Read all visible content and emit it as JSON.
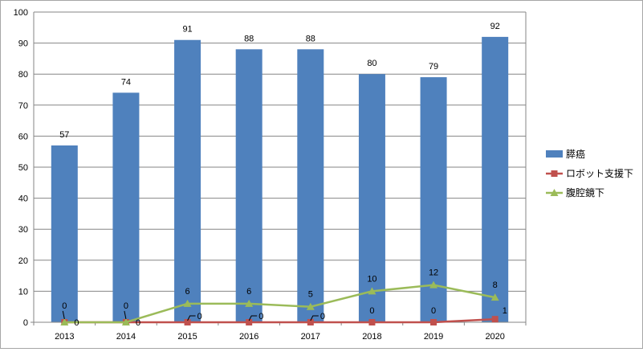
{
  "chart_data": {
    "type": "bar",
    "categories": [
      "2013",
      "2014",
      "2015",
      "2016",
      "2017",
      "2018",
      "2019",
      "2020"
    ],
    "ylim": [
      0,
      100
    ],
    "yticks": [
      0,
      10,
      20,
      30,
      40,
      50,
      60,
      70,
      80,
      90,
      100
    ],
    "grid": true,
    "legend_position": "right",
    "series": [
      {
        "name": "膵癌",
        "type": "bar",
        "color": "#4f81bd",
        "values": [
          57,
          74,
          91,
          88,
          88,
          80,
          79,
          92
        ]
      },
      {
        "name": "ロボット支援下",
        "type": "line",
        "marker": "square",
        "color": "#c0504d",
        "values": [
          0,
          0,
          0,
          0,
          0,
          0,
          0,
          1
        ]
      },
      {
        "name": "腹腔鏡下",
        "type": "line",
        "marker": "triangle",
        "color": "#9bbb59",
        "values": [
          0,
          0,
          6,
          6,
          5,
          10,
          12,
          8
        ]
      }
    ]
  }
}
